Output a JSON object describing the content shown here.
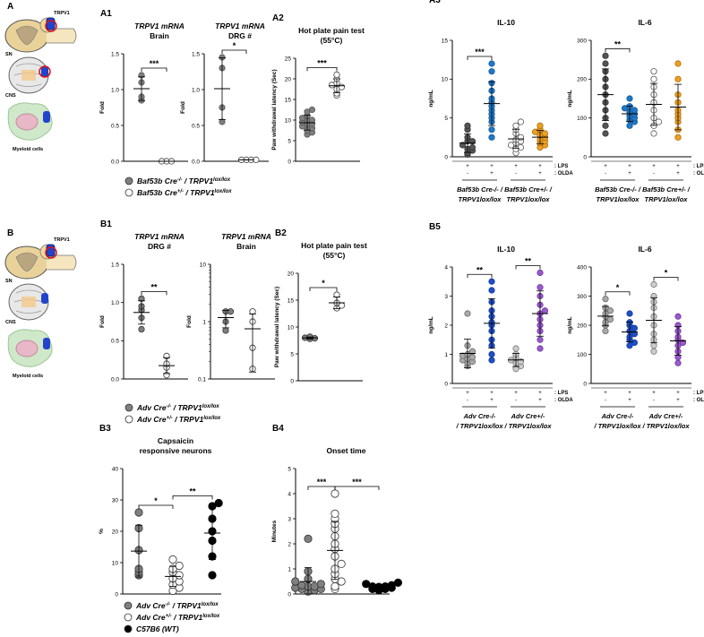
{
  "panels": {
    "A": {
      "label": "A",
      "receptor_label": "TRPV1",
      "tissues": [
        "SN",
        "CNS",
        "Myeloid cells"
      ]
    },
    "B": {
      "label": "B",
      "receptor_label": "TRPV1",
      "tissues": [
        "SN",
        "CNS",
        "Myeloid cells"
      ]
    }
  },
  "legends": {
    "baf": [
      {
        "base": "Baf53b Cre",
        "sup": "-/-",
        "mid": " / TRPV1",
        "sup2": "lox/lox",
        "color": "#7f7f7f"
      },
      {
        "base": "Baf53b Cre",
        "sup": "+/-",
        "mid": " / TRPV1",
        "sup2": "lox/lox",
        "color": "#ffffff"
      }
    ],
    "adv": [
      {
        "base": "Adv Cre",
        "sup": "-/-",
        "mid": " / TRPV1",
        "sup2": "lox/lox",
        "color": "#7f7f7f"
      },
      {
        "base": "Adv Cre",
        "sup": "+/-",
        "mid": " / TRPV1",
        "sup2": "lox/lox",
        "color": "#ffffff"
      }
    ],
    "b3": [
      {
        "base": "Adv Cre",
        "sup": "-/-",
        "mid": " / TRPV1",
        "sup2": "lox/lox",
        "color": "#7f7f7f"
      },
      {
        "base": "Adv Cre",
        "sup": "+/-",
        "mid": " / TRPV1",
        "sup2": "lox/lox",
        "color": "#ffffff"
      },
      {
        "base": "C57B6 (WT)",
        "sup": "",
        "mid": "",
        "sup2": "",
        "color": "#000000"
      }
    ]
  },
  "group_labels": {
    "baf_minus": [
      "Baf53b Cre-/- /",
      "TRPV1lox/lox"
    ],
    "baf_plus": [
      "Baf53b Cre+/- /",
      "TRPV1lox/lox"
    ],
    "adv_minus": [
      "Adv Cre-/-",
      "/ TRPV1lox/lox"
    ],
    "adv_plus": [
      "Adv Cre+/-",
      "/ TRPV1lox/lox"
    ]
  },
  "condition_rows": {
    "lps": ": LPS",
    "olda": ": OLDA",
    "lps_vals": [
      "+",
      "+",
      "+",
      "+"
    ],
    "olda_vals": [
      "-",
      "+",
      "-",
      "+"
    ]
  },
  "chart_data": [
    {
      "id": "A1a",
      "label": "A1",
      "type": "scatter",
      "title": [
        "TRPV1 mRNA",
        "Brain"
      ],
      "ylabel": "Fold",
      "ylim": [
        0,
        1.5
      ],
      "yticks": [
        "0.0",
        "0.5",
        "1.0",
        "1.5"
      ],
      "sig": [
        "***"
      ],
      "groups": [
        {
          "name": "Baf53b Cre-/-",
          "values": [
            1.2,
            1.1,
            0.9,
            0.85
          ]
        },
        {
          "name": "Baf53b Cre+/-",
          "values": [
            0.0,
            0.0,
            0.0
          ]
        }
      ]
    },
    {
      "id": "A1b",
      "label": "",
      "type": "scatter",
      "title": [
        "TRPV1 mRNA",
        "DRG #"
      ],
      "ylabel": "Fold",
      "ylim": [
        0,
        1.5
      ],
      "yticks": [
        "0.0",
        "0.5",
        "1.0",
        "1.5"
      ],
      "sig": [
        "*"
      ],
      "groups": [
        {
          "name": "Baf53b Cre-/-",
          "values": [
            1.45,
            1.3,
            0.75,
            0.55
          ]
        },
        {
          "name": "Baf53b Cre+/-",
          "values": [
            0.02,
            0.02,
            0.02,
            0.02
          ]
        }
      ]
    },
    {
      "id": "A2",
      "label": "A2",
      "type": "scatter",
      "title": [
        "Hot plate pain test",
        "(55°C)"
      ],
      "ylabel": "Paw withdrawal latency (Sec)",
      "ylim": [
        0,
        25
      ],
      "yticks": [
        "0",
        "5",
        "10",
        "15",
        "20",
        "25"
      ],
      "sig": [
        "***"
      ],
      "groups": [
        {
          "name": "Baf53b Cre-/-",
          "values": [
            12.5,
            12,
            11,
            10.5,
            10,
            10,
            9.5,
            9,
            9,
            8.5,
            8,
            7.5,
            7,
            6.5
          ]
        },
        {
          "name": "Baf53b Cre+/-",
          "values": [
            21,
            20,
            19,
            18.5,
            18,
            17.5,
            16.5,
            16
          ]
        }
      ]
    },
    {
      "id": "A3a",
      "label": "A3",
      "type": "scatter",
      "title": [
        "IL-10"
      ],
      "ylabel": "ng/mL",
      "ylim": [
        0,
        15
      ],
      "yticks": [
        "0",
        "5",
        "10",
        "15"
      ],
      "sig": [
        "***"
      ],
      "groups": [
        {
          "name": "Baf53b Cre-/- LPS",
          "values": [
            4,
            3.5,
            2.5,
            2,
            2,
            1.5,
            1.2,
            1,
            0.8,
            0.5,
            0.3
          ]
        },
        {
          "name": "Baf53b Cre-/- LPS+OLDA",
          "values": [
            12,
            11,
            9.5,
            8.5,
            7.5,
            7,
            6.5,
            6,
            5.5,
            5,
            4.5,
            3.5,
            2.5
          ]
        },
        {
          "name": "Baf53b Cre+/- LPS",
          "values": [
            4.5,
            4,
            3.5,
            3,
            2.5,
            2.2,
            2,
            1.8,
            1.5,
            1.2,
            1,
            0.5
          ]
        },
        {
          "name": "Baf53b Cre+/- LPS+OLDA",
          "values": [
            4,
            3.5,
            3.2,
            3,
            2.8,
            2.5,
            2.2,
            2,
            1.8,
            1.5,
            1.2
          ]
        }
      ]
    },
    {
      "id": "A3b",
      "label": "",
      "type": "scatter",
      "title": [
        "IL-6"
      ],
      "ylabel": "ng/mL",
      "ylim": [
        0,
        300
      ],
      "yticks": [
        "0",
        "100",
        "200",
        "300"
      ],
      "sig": [
        "**"
      ],
      "groups": [
        {
          "name": "Baf53b Cre-/- LPS",
          "values": [
            260,
            240,
            220,
            200,
            180,
            160,
            140,
            120,
            100,
            80,
            60
          ]
        },
        {
          "name": "Baf53b Cre-/- LPS+OLDA",
          "values": [
            150,
            130,
            125,
            120,
            115,
            110,
            105,
            100,
            95,
            90,
            80
          ]
        },
        {
          "name": "Baf53b Cre+/- LPS",
          "values": [
            220,
            200,
            180,
            160,
            140,
            120,
            100,
            90,
            80,
            60
          ]
        },
        {
          "name": "Baf53b Cre+/- LPS+OLDA",
          "values": [
            240,
            200,
            160,
            140,
            120,
            110,
            100,
            90,
            70,
            50
          ]
        }
      ]
    },
    {
      "id": "B1a",
      "label": "B1",
      "type": "scatter",
      "title": [
        "TRPV1 mRNA",
        "DRG #"
      ],
      "ylabel": "Fold",
      "ylim": [
        0,
        1.5
      ],
      "yticks": [
        "0.0",
        "0.5",
        "1.0",
        "1.5"
      ],
      "sig": [
        "**"
      ],
      "groups": [
        {
          "name": "Adv Cre-/-",
          "values": [
            1.05,
            0.95,
            0.9,
            0.8,
            0.65
          ]
        },
        {
          "name": "Adv Cre+/-",
          "values": [
            0.3,
            0.2,
            0.15,
            0.05
          ]
        }
      ]
    },
    {
      "id": "B1b",
      "label": "",
      "type": "scatter",
      "log": true,
      "title": [
        "TRPV1 mRNA",
        "Brain"
      ],
      "ylabel": "Fold",
      "ylim": [
        0.1,
        10
      ],
      "yticks": [
        "0.1",
        "1",
        "10"
      ],
      "sig": [],
      "groups": [
        {
          "name": "Adv Cre-/-",
          "values": [
            1.5,
            1.5,
            1.0,
            0.7
          ]
        },
        {
          "name": "Adv Cre+/-",
          "values": [
            1.5,
            1.0,
            0.35,
            0.15
          ]
        }
      ]
    },
    {
      "id": "B2",
      "label": "B2",
      "type": "scatter",
      "title": [
        "Hot plate pain test",
        "(55°C)"
      ],
      "ylabel": "Paw withdrawal latency (Sec)",
      "ylim": [
        0,
        20
      ],
      "yticks": [
        "0",
        "5",
        "10",
        "15",
        "20"
      ],
      "sig": [
        "*"
      ],
      "groups": [
        {
          "name": "Adv Cre-/-",
          "values": [
            8.2,
            8,
            7.9,
            7.8
          ]
        },
        {
          "name": "Adv Cre+/-",
          "values": [
            16,
            14.5,
            14,
            13.5
          ]
        }
      ]
    },
    {
      "id": "B5a",
      "label": "B5",
      "type": "scatter",
      "title": [
        "IL-10"
      ],
      "ylabel": "ng/mL",
      "ylim": [
        0,
        4
      ],
      "yticks": [
        "0",
        "1",
        "2",
        "3",
        "4"
      ],
      "sig": [
        "**",
        "**"
      ],
      "groups": [
        {
          "name": "Adv Cre-/- LPS",
          "values": [
            2.4,
            1.3,
            1.1,
            1.0,
            0.95,
            0.9,
            0.85,
            0.8,
            0.75,
            0.7,
            0.6
          ]
        },
        {
          "name": "Adv Cre-/- LPS+OLDA",
          "values": [
            3.5,
            3.2,
            2.8,
            2.5,
            2.3,
            2.1,
            2.0,
            1.8,
            1.5,
            1.3,
            1.0,
            0.8
          ]
        },
        {
          "name": "Adv Cre+/- LPS",
          "values": [
            1.2,
            1.0,
            0.9,
            0.8,
            0.75,
            0.7,
            0.6,
            0.5
          ]
        },
        {
          "name": "Adv Cre+/- LPS+OLDA",
          "values": [
            3.8,
            3.3,
            3.0,
            2.7,
            2.5,
            2.4,
            2.2,
            2.0,
            1.8,
            1.5,
            1.2
          ]
        }
      ]
    },
    {
      "id": "B5b",
      "label": "",
      "type": "scatter",
      "title": [
        "IL-6"
      ],
      "ylabel": "ng/mL",
      "ylim": [
        0,
        400
      ],
      "yticks": [
        "0",
        "100",
        "200",
        "300",
        "400"
      ],
      "sig": [
        "*",
        "*"
      ],
      "groups": [
        {
          "name": "Adv Cre-/- LPS",
          "values": [
            290,
            260,
            250,
            240,
            230,
            220,
            210,
            200,
            180
          ]
        },
        {
          "name": "Adv Cre-/- LPS+OLDA",
          "values": [
            240,
            210,
            200,
            190,
            180,
            170,
            160,
            150,
            140,
            130
          ]
        },
        {
          "name": "Adv Cre+/- LPS",
          "values": [
            340,
            300,
            280,
            260,
            230,
            200,
            170,
            150,
            130,
            110
          ]
        },
        {
          "name": "Adv Cre+/- LPS+OLDA",
          "values": [
            230,
            200,
            180,
            160,
            150,
            140,
            130,
            110,
            90,
            70
          ]
        }
      ]
    },
    {
      "id": "B3",
      "label": "B3",
      "type": "scatter",
      "title": [
        "Capsaicin",
        "responsive neurons"
      ],
      "ylabel": "%",
      "ylim": [
        0,
        40
      ],
      "yticks": [
        "0",
        "10",
        "20",
        "30",
        "40"
      ],
      "sig": [
        "*",
        "**"
      ],
      "groups": [
        {
          "name": "Adv Cre-/-",
          "values": [
            26,
            21,
            14,
            8,
            7,
            6
          ]
        },
        {
          "name": "Adv Cre+/-",
          "values": [
            11,
            9,
            8,
            7,
            6,
            5,
            4,
            3,
            2,
            1
          ]
        },
        {
          "name": "C57B6 (WT)",
          "values": [
            29,
            28,
            24,
            20,
            17,
            12,
            6
          ]
        }
      ]
    },
    {
      "id": "B4",
      "label": "B4",
      "type": "scatter",
      "title": [
        "Onset time"
      ],
      "ylabel": "Minutes",
      "ylim": [
        0,
        5
      ],
      "yticks": [
        "0",
        "1",
        "2",
        "3",
        "4",
        "5"
      ],
      "sig": [
        "***",
        "***"
      ],
      "groups": [
        {
          "name": "Adv Cre-/-",
          "values": [
            2.2,
            0.9,
            0.6,
            0.5,
            0.4,
            0.35,
            0.3,
            0.3,
            0.25,
            0.2,
            0.2,
            0.15,
            0.1
          ]
        },
        {
          "name": "Adv Cre+/-",
          "values": [
            4.0,
            3.2,
            3.0,
            2.8,
            2.6,
            2.3,
            2.0,
            1.8,
            1.5,
            1.2,
            1.0,
            0.8,
            0.6,
            0.5,
            0.3,
            0.2
          ]
        },
        {
          "name": "C57B6 (WT)",
          "values": [
            0.45,
            0.4,
            0.35,
            0.3,
            0.3,
            0.28,
            0.25,
            0.2,
            0.2,
            0.15
          ]
        }
      ]
    }
  ]
}
